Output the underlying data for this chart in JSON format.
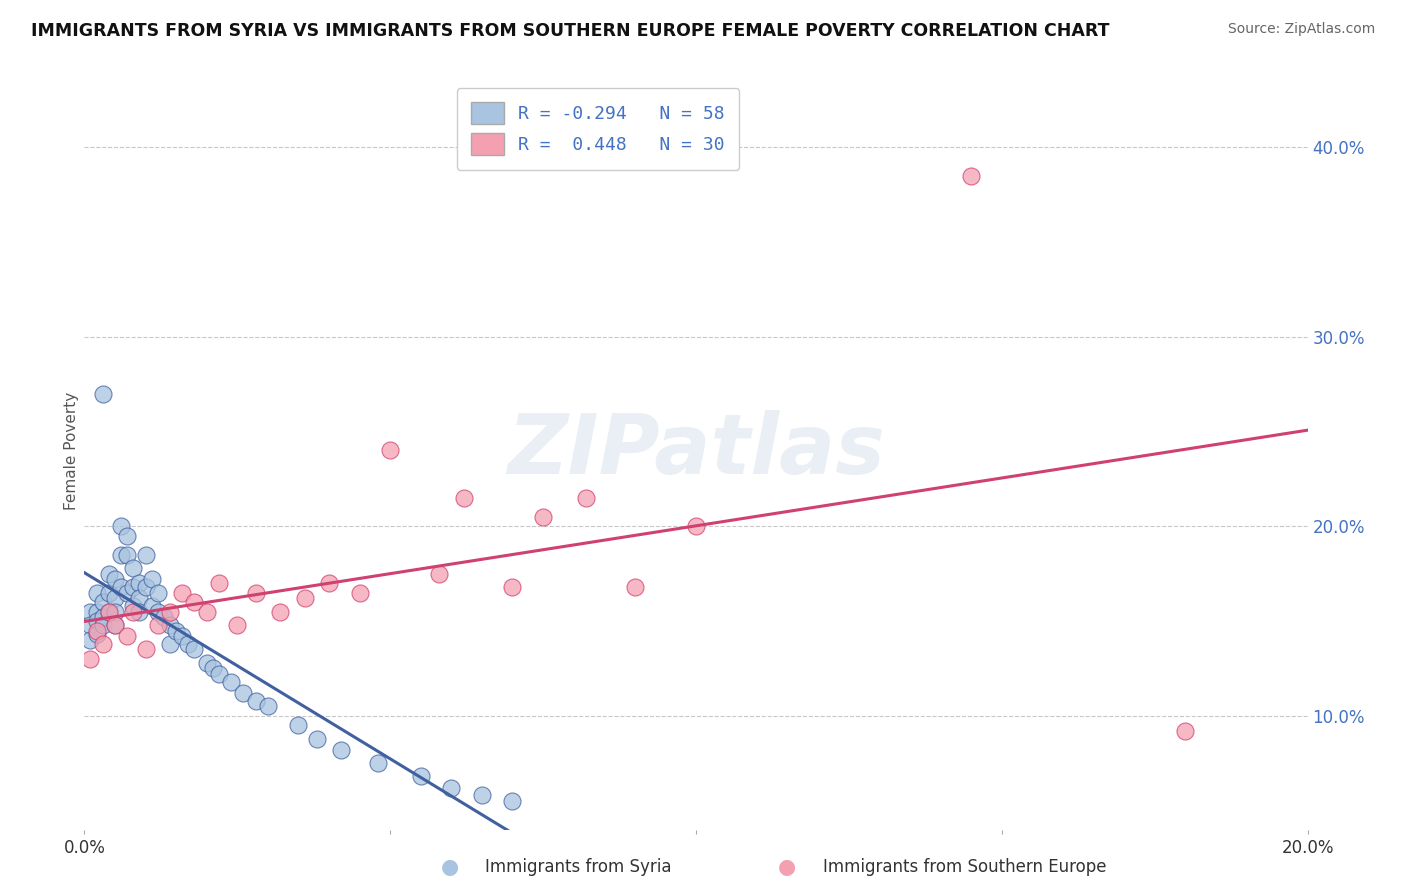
{
  "title": "IMMIGRANTS FROM SYRIA VS IMMIGRANTS FROM SOUTHERN EUROPE FEMALE POVERTY CORRELATION CHART",
  "source": "Source: ZipAtlas.com",
  "ylabel": "Female Poverty",
  "xlim": [
    0.0,
    0.2
  ],
  "ylim": [
    0.04,
    0.44
  ],
  "color_syria": "#a8c4e0",
  "color_se": "#f4a0b0",
  "color_syria_line": "#4060a0",
  "color_se_line": "#d04070",
  "watermark": "ZIPatlas",
  "background_color": "#ffffff",
  "grid_color": "#c8c8c8",
  "syria_x": [
    0.001,
    0.001,
    0.001,
    0.002,
    0.002,
    0.002,
    0.002,
    0.003,
    0.003,
    0.003,
    0.003,
    0.004,
    0.004,
    0.004,
    0.005,
    0.005,
    0.005,
    0.005,
    0.006,
    0.006,
    0.006,
    0.007,
    0.007,
    0.007,
    0.008,
    0.008,
    0.008,
    0.009,
    0.009,
    0.009,
    0.01,
    0.01,
    0.011,
    0.011,
    0.012,
    0.012,
    0.013,
    0.014,
    0.014,
    0.015,
    0.016,
    0.017,
    0.018,
    0.02,
    0.021,
    0.022,
    0.024,
    0.026,
    0.028,
    0.03,
    0.035,
    0.038,
    0.042,
    0.048,
    0.055,
    0.06,
    0.065,
    0.07
  ],
  "syria_y": [
    0.155,
    0.148,
    0.14,
    0.165,
    0.155,
    0.15,
    0.143,
    0.16,
    0.152,
    0.148,
    0.27,
    0.175,
    0.165,
    0.155,
    0.172,
    0.162,
    0.155,
    0.148,
    0.2,
    0.185,
    0.168,
    0.195,
    0.185,
    0.165,
    0.178,
    0.168,
    0.158,
    0.17,
    0.162,
    0.155,
    0.185,
    0.168,
    0.172,
    0.158,
    0.165,
    0.155,
    0.152,
    0.148,
    0.138,
    0.145,
    0.142,
    0.138,
    0.135,
    0.128,
    0.125,
    0.122,
    0.118,
    0.112,
    0.108,
    0.105,
    0.095,
    0.088,
    0.082,
    0.075,
    0.068,
    0.062,
    0.058,
    0.055
  ],
  "se_x": [
    0.001,
    0.002,
    0.003,
    0.004,
    0.005,
    0.007,
    0.008,
    0.01,
    0.012,
    0.014,
    0.016,
    0.018,
    0.02,
    0.022,
    0.025,
    0.028,
    0.032,
    0.036,
    0.04,
    0.045,
    0.05,
    0.058,
    0.062,
    0.07,
    0.075,
    0.082,
    0.09,
    0.1,
    0.145,
    0.18
  ],
  "se_y": [
    0.13,
    0.145,
    0.138,
    0.155,
    0.148,
    0.142,
    0.155,
    0.135,
    0.148,
    0.155,
    0.165,
    0.16,
    0.155,
    0.17,
    0.148,
    0.165,
    0.155,
    0.162,
    0.17,
    0.165,
    0.24,
    0.175,
    0.215,
    0.168,
    0.205,
    0.215,
    0.168,
    0.2,
    0.385,
    0.092
  ],
  "legend_text1": "R = -0.294   N = 58",
  "legend_text2": "R =  0.448   N = 30",
  "bottom_label1": "Immigrants from Syria",
  "bottom_label2": "Immigrants from Southern Europe"
}
